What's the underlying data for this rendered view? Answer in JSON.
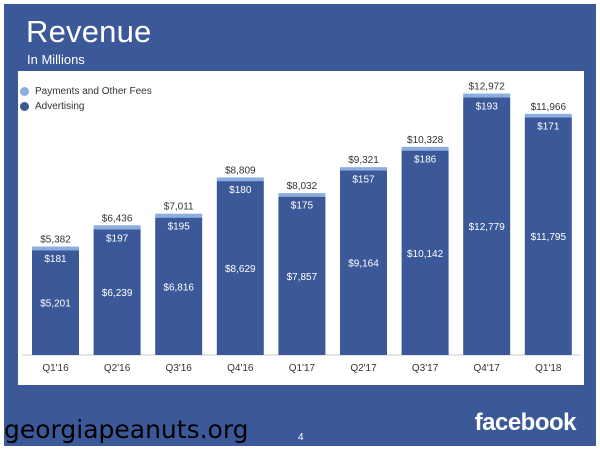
{
  "header": {
    "title": "Revenue",
    "subtitle": "In Millions"
  },
  "footer": {
    "page_number": "4",
    "brand": "facebook",
    "watermark": "georgiapeanuts.org"
  },
  "colors": {
    "background": "#3b5998",
    "advertising": "#3b5998",
    "payments": "#8aaee0"
  },
  "chart_data": {
    "type": "bar",
    "stacked": true,
    "title": "Revenue",
    "subtitle": "In Millions",
    "categories": [
      "Q1'16",
      "Q2'16",
      "Q3'16",
      "Q4'16",
      "Q1'17",
      "Q2'17",
      "Q3'17",
      "Q4'17",
      "Q1'18"
    ],
    "series": [
      {
        "name": "Advertising",
        "color": "#3b5998",
        "values": [
          5201,
          6239,
          6816,
          8629,
          7857,
          9164,
          10142,
          12779,
          11795
        ],
        "labels": [
          "$5,201",
          "$6,239",
          "$6,816",
          "$8,629",
          "$7,857",
          "$9,164",
          "$10,142",
          "$12,779",
          "$11,795"
        ]
      },
      {
        "name": "Payments and Other Fees",
        "color": "#8aaee0",
        "values": [
          181,
          197,
          195,
          180,
          175,
          157,
          186,
          193,
          171
        ],
        "labels": [
          "$181",
          "$197",
          "$195",
          "$180",
          "$175",
          "$157",
          "$186",
          "$193",
          "$171"
        ]
      }
    ],
    "totals": [
      5382,
      6436,
      7011,
      8809,
      8032,
      9321,
      10328,
      12972,
      11966
    ],
    "total_labels": [
      "$5,382",
      "$6,436",
      "$7,011",
      "$8,809",
      "$8,032",
      "$9,321",
      "$10,328",
      "$12,972",
      "$11,966"
    ],
    "ylim": [
      0,
      13000
    ],
    "grid": false,
    "legend": "top-left"
  }
}
